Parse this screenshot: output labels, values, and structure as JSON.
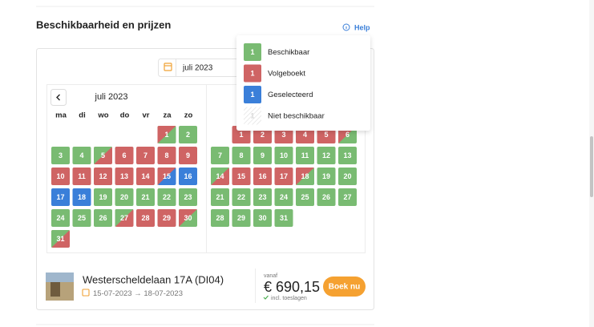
{
  "section_title": "Beschikbaarheid en prijzen",
  "help": "Help",
  "month_select": "juli 2023",
  "calendar": {
    "month": "juli 2023",
    "weekdays": [
      "ma",
      "di",
      "wo",
      "do",
      "vr",
      "za",
      "zo"
    ],
    "july_days": [
      1,
      2,
      3,
      4,
      5,
      6,
      7,
      8,
      9,
      10,
      11,
      12,
      13,
      14,
      15,
      16,
      17,
      18,
      19,
      20,
      21,
      22,
      23,
      24,
      25,
      26,
      27,
      28,
      29,
      30,
      31
    ],
    "august_days": [
      1,
      2,
      3,
      4,
      5,
      6,
      7,
      8,
      9,
      10,
      11,
      12,
      13,
      14,
      15,
      16,
      17,
      18,
      19,
      20,
      21,
      22,
      23,
      24,
      25,
      26,
      27,
      28,
      29,
      30,
      31
    ]
  },
  "legend": [
    {
      "sample": "1",
      "label": "Beschikbaar"
    },
    {
      "sample": "1",
      "label": "Volgeboekt"
    },
    {
      "sample": "1",
      "label": "Geselecteerd"
    },
    {
      "sample": "1",
      "label": "Niet beschikbaar"
    }
  ],
  "listing": {
    "name": "Westerscheldelaan 17A (DI04)",
    "check_in": "15-07-2023",
    "arrow": "→",
    "check_out": "18-07-2023",
    "price_prefix": "vanaf",
    "price": "€ 690,15",
    "price_note": "incl. toeslagen",
    "button": "Boek nu"
  }
}
